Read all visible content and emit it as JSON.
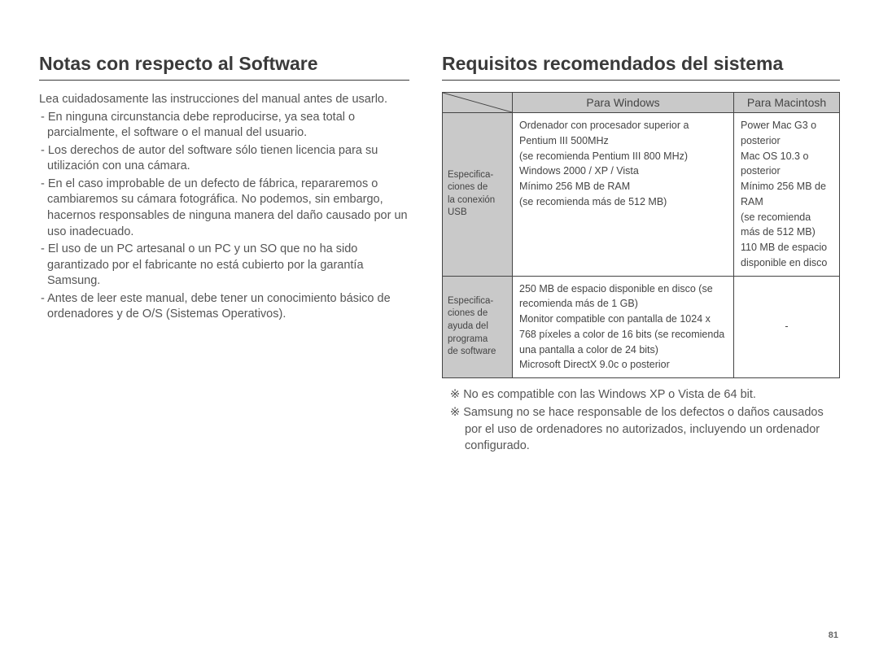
{
  "page_number": "81",
  "left": {
    "title": "Notas con respecto al Software",
    "intro": "Lea cuidadosamente las instrucciones del manual antes de usarlo.",
    "notes": [
      "En ninguna circunstancia debe reproducirse, ya sea total o parcialmente, el software o el manual del usuario.",
      "Los derechos de autor del software sólo tienen licencia para su utilización con una cámara.",
      "En el caso improbable de un defecto de fábrica, repararemos o cambiaremos su cámara fotográfica. No podemos, sin embargo, hacernos responsables de ninguna manera del daño causado por un uso inadecuado.",
      "El uso de un PC artesanal o un PC y un SO que no ha sido garantizado por el fabricante no está cubierto por la garantía Samsung.",
      "Antes de leer este manual, debe tener un conocimiento básico de ordenadores y de O/S (Sistemas Operativos)."
    ]
  },
  "right": {
    "title": "Requisitos recomendados del sistema",
    "table": {
      "header_windows": "Para Windows",
      "header_mac": "Para Macintosh",
      "row1_label": "Especifica-\nciones de\nla conexión\nUSB",
      "row1_win": "Ordenador con procesador superior a Pentium III 500MHz\n(se recomienda Pentium III 800 MHz)\nWindows 2000 / XP / Vista\nMínimo 256 MB de RAM\n(se recomienda más de 512 MB)",
      "row1_mac": "Power Mac G3 o posterior\nMac OS 10.3 o posterior\nMínimo 256 MB de RAM\n(se recomienda más de 512 MB)\n110 MB de espacio disponible en disco",
      "row2_label": "Especifica-\nciones de\nayuda del\nprograma\nde software",
      "row2_win": "250 MB de espacio disponible en disco (se recomienda más de 1 GB)\nMonitor compatible con pantalla de 1024 x 768 píxeles a color de 16 bits (se recomienda una pantalla a color de 24 bits)\nMicrosoft DirectX 9.0c o posterior",
      "row2_mac": "-"
    },
    "footnotes": [
      "No es compatible con las Windows XP o Vista de 64 bit.",
      "Samsung no se hace responsable de los defectos o daños causados por el uso de ordenadores no autorizados, incluyendo un ordenador configurado."
    ]
  },
  "style": {
    "title_fontsize": 23,
    "body_fontsize": 14.5,
    "table_fontsize": 12.5,
    "table_header_bg": "#c9c9c9",
    "border_color": "#444444",
    "text_color": "#555555",
    "background_color": "#ffffff"
  }
}
